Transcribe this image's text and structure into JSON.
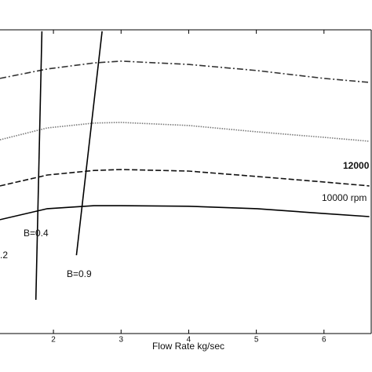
{
  "chart_data": {
    "type": "line",
    "xlabel": "Flow Rate kg/sec",
    "xlim": [
      1.21,
      6.71
    ],
    "xticks": [
      2,
      3,
      4,
      5,
      6
    ],
    "ylim": [
      0,
      100
    ],
    "series": [
      {
        "color": "#333333",
        "dash": "8,3,2,3",
        "x": [
          1.21,
          1.91,
          2.6,
          3,
          4,
          5.01,
          6,
          6.67
        ],
        "values": [
          84.0,
          87.1,
          89.1,
          89.7,
          88.6,
          86.6,
          84.0,
          82.7
        ]
      },
      {
        "color": "#777777",
        "dash": "1.5,1.5",
        "x": [
          1.21,
          1.91,
          2.6,
          3,
          4,
          5.01,
          6,
          6.67
        ],
        "values": [
          63.8,
          67.7,
          69.3,
          69.5,
          68.5,
          66.4,
          64.6,
          63.3
        ]
      },
      {
        "color": "#111111",
        "dash": "7,3",
        "x": [
          1.21,
          1.91,
          2.6,
          3,
          4,
          5.01,
          6,
          6.67
        ],
        "values": [
          48.6,
          52.2,
          53.7,
          54.0,
          53.5,
          51.7,
          49.9,
          48.6
        ]
      },
      {
        "color": "#000000",
        "dash": "none",
        "x": [
          1.21,
          1.91,
          2.6,
          3,
          4,
          5.01,
          6,
          6.67
        ],
        "values": [
          37.5,
          41.1,
          42.1,
          42.1,
          41.9,
          41.1,
          39.5,
          38.5
        ]
      },
      {
        "color": "#000000",
        "dash": "none",
        "x": [
          1.83,
          1.74
        ],
        "values": [
          99.5,
          11.1
        ]
      },
      {
        "color": "#000000",
        "dash": "none",
        "x": [
          2.72,
          2.34
        ],
        "values": [
          99.5,
          25.8
        ]
      }
    ],
    "annotations": [
      "12000",
      "10000 rpm",
      "B=0.4",
      "B=0.9",
      ".2"
    ]
  }
}
